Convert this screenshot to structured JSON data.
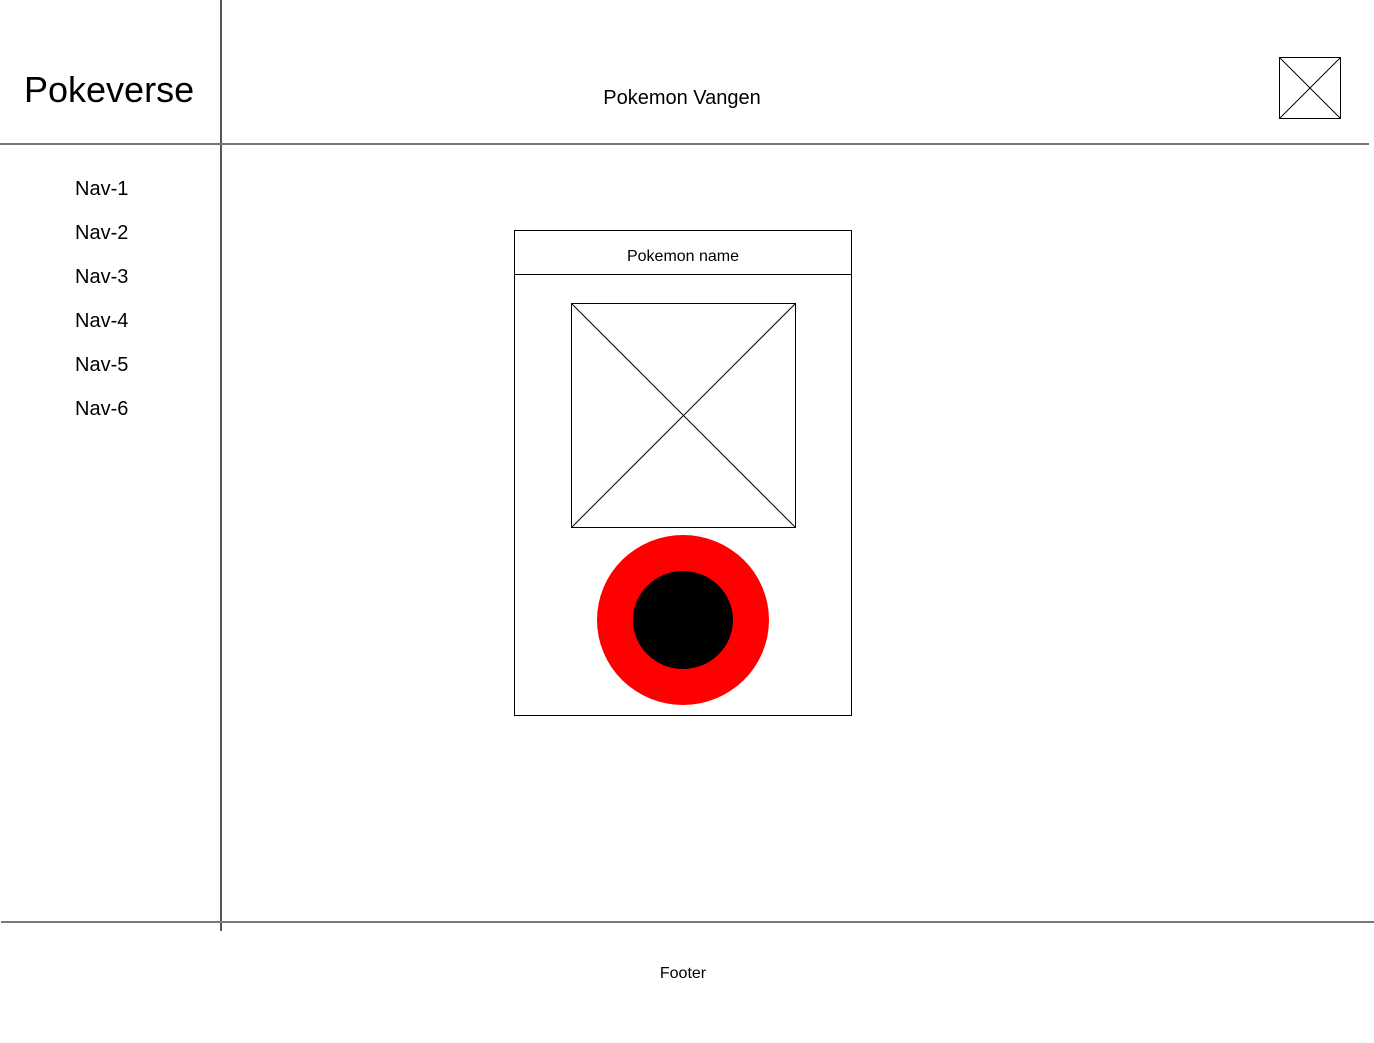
{
  "header": {
    "brand": "Pokeverse",
    "title": "Pokemon Vangen",
    "profile_image_icon": "image-placeholder-icon"
  },
  "sidebar": {
    "items": [
      {
        "label": "Nav-1"
      },
      {
        "label": "Nav-2"
      },
      {
        "label": "Nav-3"
      },
      {
        "label": "Nav-4"
      },
      {
        "label": "Nav-5"
      },
      {
        "label": "Nav-6"
      }
    ]
  },
  "main": {
    "card": {
      "name": "Pokemon name",
      "image_icon": "image-placeholder-icon",
      "catch_button_icon": "pokeball-icon"
    }
  },
  "footer": {
    "text": "Footer"
  },
  "colors": {
    "pokeball_outer": "#ff0000",
    "pokeball_inner": "#000000",
    "line": "#555555"
  }
}
